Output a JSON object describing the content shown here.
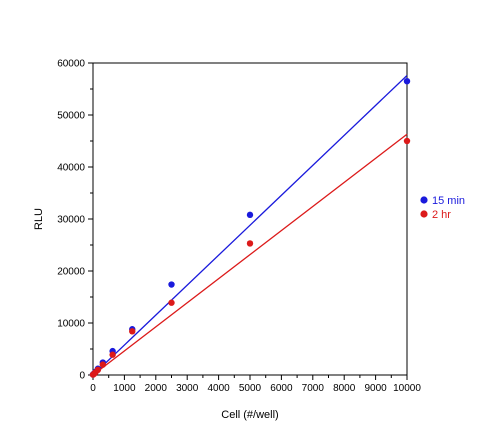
{
  "chart_data": {
    "type": "scatter",
    "xlabel": "Cell (#/well)",
    "ylabel": "RLU",
    "xlim": [
      0,
      10000
    ],
    "ylim": [
      0,
      60000
    ],
    "x_ticks": [
      0,
      1000,
      2000,
      3000,
      4000,
      5000,
      6000,
      7000,
      8000,
      9000,
      10000
    ],
    "y_ticks": [
      0,
      10000,
      20000,
      30000,
      40000,
      50000,
      60000
    ],
    "legend_position": "right",
    "grid": false,
    "series": [
      {
        "name": "15 min",
        "color": "#1a1adc",
        "x": [
          0,
          39,
          78,
          156,
          313,
          625,
          1250,
          2500,
          5000,
          10000
        ],
        "y": [
          100,
          300,
          600,
          1200,
          2400,
          4600,
          8800,
          17400,
          30800,
          56500
        ],
        "fit": [
          [
            0,
            0
          ],
          [
            10000,
            57600
          ]
        ]
      },
      {
        "name": "2 hr",
        "color": "#dc1a1a",
        "x": [
          0,
          39,
          78,
          156,
          313,
          625,
          1250,
          2500,
          5000,
          10000
        ],
        "y": [
          80,
          250,
          500,
          1000,
          2000,
          3900,
          8400,
          13900,
          25300,
          45000
        ],
        "fit": [
          [
            0,
            0
          ],
          [
            10000,
            46300
          ]
        ]
      }
    ]
  }
}
